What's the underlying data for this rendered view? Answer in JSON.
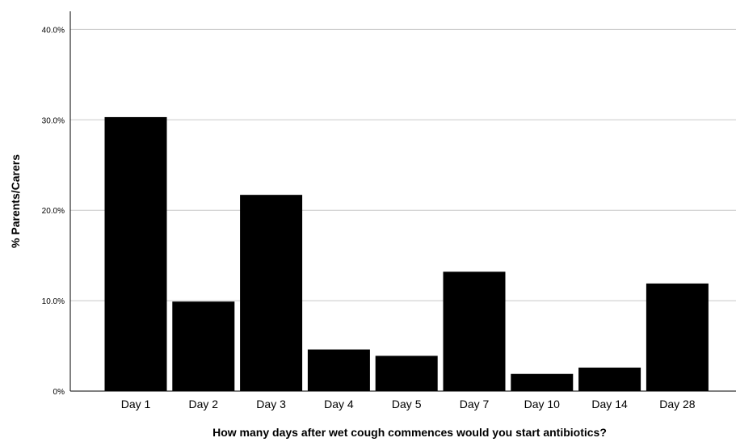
{
  "chart_data": {
    "type": "bar",
    "title": "",
    "xlabel": "How many days after wet cough commences would you start antibiotics?",
    "ylabel": "% Parents/Carers",
    "categories": [
      "Day 1",
      "Day 2",
      "Day 3",
      "Day 4",
      "Day 5",
      "Day 7",
      "Day 10",
      "Day 14",
      "Day 28"
    ],
    "values": [
      30.3,
      9.9,
      21.7,
      4.6,
      3.9,
      13.2,
      1.9,
      2.6,
      11.9
    ],
    "ylim": [
      0,
      42
    ],
    "yticks": [
      0,
      10,
      20,
      30,
      40
    ],
    "ytick_labels": [
      "0%",
      "10.0%",
      "20.0%",
      "30.0%",
      "40.0%"
    ],
    "grid": "horizontal",
    "bar_color": "#000000",
    "grid_color": "#c8c8c8"
  }
}
